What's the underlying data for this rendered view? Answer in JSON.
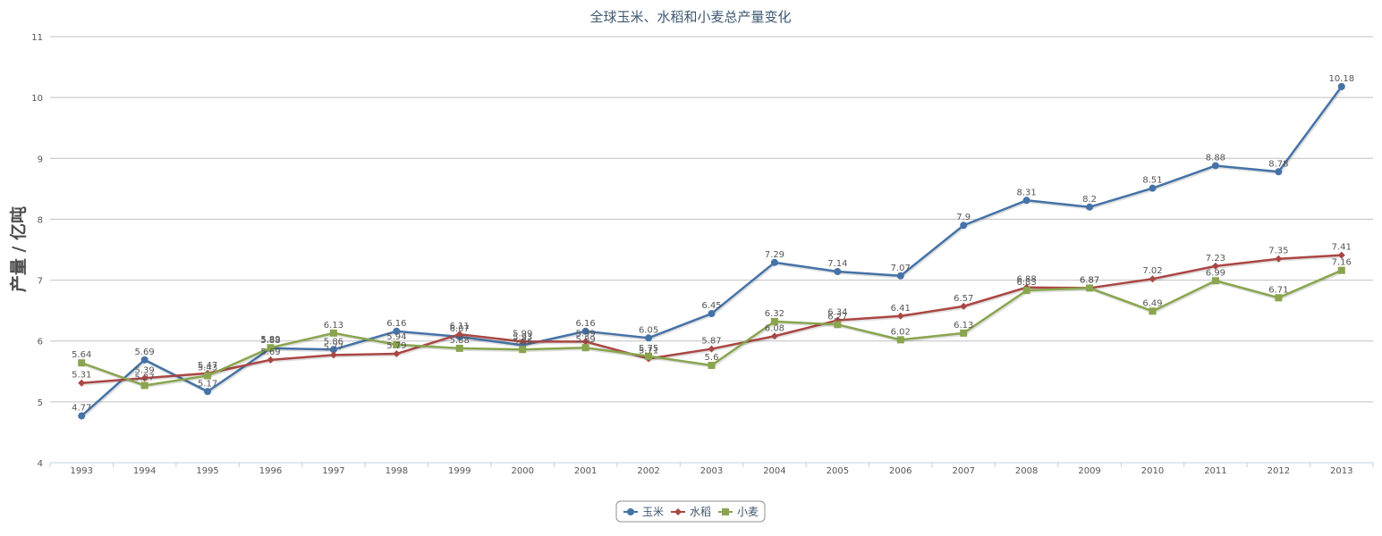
{
  "chart_data": {
    "type": "line",
    "title": "全球玉米、水稻和小麦总产量变化",
    "xlabel": "",
    "ylabel": "产量 / 亿吨",
    "ylim": [
      4,
      11
    ],
    "yticks": [
      "4",
      "5",
      "6",
      "7",
      "8",
      "9",
      "10",
      "11"
    ],
    "grid": true,
    "legend_position": "bottom-center",
    "x": [
      "1993",
      "1994",
      "1995",
      "1996",
      "1997",
      "1998",
      "1999",
      "2000",
      "2001",
      "2002",
      "2003",
      "2004",
      "2005",
      "2006",
      "2007",
      "2008",
      "2009",
      "2010",
      "2011",
      "2012",
      "2013"
    ],
    "series": [
      {
        "name": "玉米",
        "color": "#4572a7",
        "marker": "circle",
        "values": [
          4.77,
          5.69,
          5.17,
          5.88,
          5.86,
          6.16,
          6.07,
          5.93,
          6.16,
          6.05,
          6.45,
          7.29,
          7.14,
          7.07,
          7.9,
          8.31,
          8.2,
          8.51,
          8.88,
          8.78,
          10.18
        ],
        "labels": [
          "4.77",
          "5.69",
          "5.17",
          "5.88",
          "5.86",
          "6.16",
          "6.07",
          "5.93",
          "6.16",
          "6.05",
          "6.45",
          "7.29",
          "7.14",
          "7.07",
          "7.9",
          "8.31",
          "8.2",
          "8.51",
          "8.88",
          "8.78",
          "10.18"
        ]
      },
      {
        "name": "水稻",
        "color": "#aa4643",
        "marker": "diamond",
        "values": [
          5.31,
          5.39,
          5.47,
          5.69,
          5.77,
          5.79,
          6.11,
          5.99,
          5.99,
          5.71,
          5.87,
          6.08,
          6.34,
          6.41,
          6.57,
          6.88,
          6.87,
          7.02,
          7.23,
          7.35,
          7.41
        ],
        "labels": [
          "5.31",
          "5.39",
          "5.47",
          "5.69",
          "5.77",
          "5.79",
          "6.11",
          "5.99",
          "5.99",
          "5.71",
          "5.87",
          "6.08",
          "6.34",
          "6.41",
          "6.57",
          "6.88",
          "6.87",
          "7.02",
          "7.23",
          "7.35",
          "7.41"
        ]
      },
      {
        "name": "小麦",
        "color": "#89a54e",
        "marker": "square",
        "values": [
          5.64,
          5.27,
          5.43,
          5.89,
          6.13,
          5.94,
          5.88,
          5.86,
          5.89,
          5.75,
          5.6,
          6.32,
          6.27,
          6.02,
          6.13,
          6.83,
          6.87,
          6.49,
          6.99,
          6.71,
          7.16
        ],
        "labels": [
          "5.64",
          "5.27",
          "5.43",
          "5.89",
          "6.13",
          "5.94",
          "5.88",
          "5.86",
          "5.89",
          "5.75",
          "5.6",
          "6.32",
          "6.27",
          "6.02",
          "6.13",
          "6.83",
          "6.87",
          "6.49",
          "6.99",
          "6.71",
          "7.16"
        ]
      }
    ]
  }
}
